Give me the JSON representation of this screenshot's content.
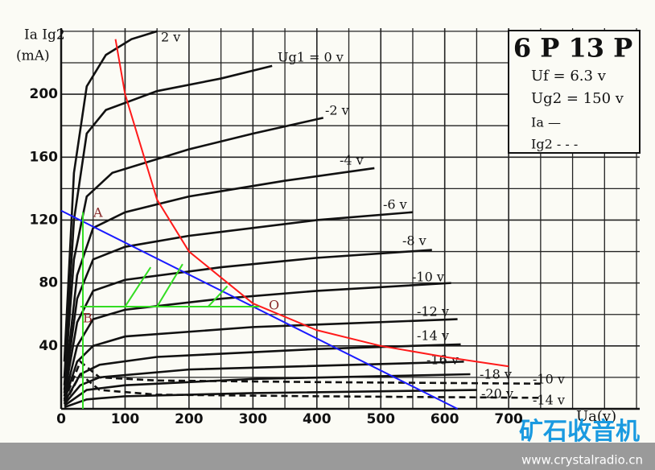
{
  "chart_data": {
    "type": "line",
    "y_label": "Ia Ig2",
    "y_unit": "(mA)",
    "x_label": "Ua(v)",
    "xlim": [
      0,
      905
    ],
    "ylim": [
      0,
      242
    ],
    "xticks": [
      0,
      100,
      200,
      300,
      400,
      500,
      600,
      700
    ],
    "yticks": [
      40,
      80,
      120,
      160,
      200
    ],
    "minor_xticks": [
      50,
      150,
      250,
      350,
      450,
      550,
      650,
      750,
      800,
      850,
      900
    ],
    "minor_yticks": [
      20,
      60,
      100,
      140,
      180,
      220,
      240
    ],
    "grid": true,
    "info_box": {
      "tube": "6 P 13 P",
      "lines": [
        "Uf = 6.3 v",
        "Ug2 = 150 v",
        "Ia —",
        "Ig2 - - -"
      ]
    },
    "points": [
      "A",
      "B",
      "O"
    ],
    "watermark": {
      "title": "矿石收音机",
      "url": "www.crystalradio.cn"
    },
    "series": [
      {
        "name": "2 v",
        "color": "#111111",
        "x": [
          5,
          20,
          40,
          70,
          110,
          150
        ],
        "values": [
          30,
          150,
          205,
          225,
          235,
          240
        ]
      },
      {
        "name": "Ug1 = 0 v",
        "color": "#111111",
        "x": [
          5,
          20,
          40,
          70,
          150,
          250,
          330
        ],
        "values": [
          20,
          120,
          175,
          190,
          202,
          210,
          218
        ]
      },
      {
        "name": "-2 v",
        "color": "#111111",
        "x": [
          5,
          20,
          40,
          80,
          200,
          300,
          410
        ],
        "values": [
          15,
          95,
          135,
          150,
          165,
          175,
          185
        ]
      },
      {
        "name": "-4 v",
        "color": "#111111",
        "x": [
          5,
          25,
          50,
          100,
          200,
          350,
          490
        ],
        "values": [
          12,
          85,
          115,
          125,
          135,
          145,
          153
        ]
      },
      {
        "name": "-6 v",
        "color": "#111111",
        "x": [
          5,
          25,
          50,
          100,
          200,
          400,
          550
        ],
        "values": [
          10,
          70,
          95,
          103,
          110,
          120,
          125
        ]
      },
      {
        "name": "-8 v",
        "color": "#111111",
        "x": [
          5,
          25,
          50,
          100,
          250,
          400,
          580
        ],
        "values": [
          8,
          55,
          75,
          82,
          90,
          96,
          101
        ]
      },
      {
        "name": "-10 v",
        "color": "#111111",
        "x": [
          5,
          25,
          50,
          100,
          250,
          400,
          610
        ],
        "values": [
          6,
          40,
          57,
          63,
          70,
          75,
          80
        ]
      },
      {
        "name": "-12 v",
        "color": "#111111",
        "x": [
          5,
          25,
          50,
          100,
          300,
          620
        ],
        "values": [
          5,
          30,
          40,
          46,
          52,
          57
        ]
      },
      {
        "name": "-14 v",
        "color": "#111111",
        "x": [
          5,
          30,
          60,
          150,
          400,
          625
        ],
        "values": [
          4,
          22,
          28,
          33,
          38,
          41
        ]
      },
      {
        "name": "-16 v",
        "color": "#111111",
        "x": [
          5,
          30,
          60,
          200,
          630
        ],
        "values": [
          3,
          15,
          20,
          25,
          30
        ]
      },
      {
        "name": "-18 v",
        "color": "#111111",
        "x": [
          5,
          40,
          100,
          300,
          640
        ],
        "values": [
          2,
          12,
          15,
          19,
          22
        ]
      },
      {
        "name": "-20 v",
        "color": "#111111",
        "x": [
          5,
          40,
          100,
          300,
          650
        ],
        "values": [
          1,
          6,
          8,
          10,
          12
        ]
      },
      {
        "name": "-10 v",
        "color": "#111111",
        "dash": true,
        "x": [
          5,
          30,
          60,
          150,
          400,
          750
        ],
        "values": [
          5,
          30,
          20,
          18,
          17,
          16
        ]
      },
      {
        "name": "-14 v",
        "color": "#111111",
        "dash": true,
        "x": [
          5,
          30,
          60,
          150,
          400,
          750
        ],
        "values": [
          3,
          22,
          12,
          9,
          8,
          7
        ]
      },
      {
        "color": "#ff1a1a",
        "x": [
          85,
          100,
          150,
          200,
          300,
          400,
          500,
          600,
          700
        ],
        "values": [
          235,
          200,
          133,
          100,
          67,
          50,
          40,
          33,
          27
        ]
      },
      {
        "color": "#1a1aff",
        "x": [
          0,
          620
        ],
        "values": [
          126,
          0
        ]
      },
      {
        "color": "#33dd22",
        "x": [
          30,
          310
        ],
        "values": [
          65,
          65
        ]
      },
      {
        "color": "#33dd22",
        "x": [
          34,
          34
        ],
        "values": [
          0,
          125
        ]
      },
      {
        "color": "#33dd22",
        "x": [
          100,
          140
        ],
        "values": [
          65,
          90
        ]
      },
      {
        "color": "#33dd22",
        "x": [
          150,
          190
        ],
        "values": [
          65,
          92
        ]
      },
      {
        "color": "#33dd22",
        "x": [
          230,
          260
        ],
        "values": [
          65,
          78
        ]
      }
    ]
  }
}
